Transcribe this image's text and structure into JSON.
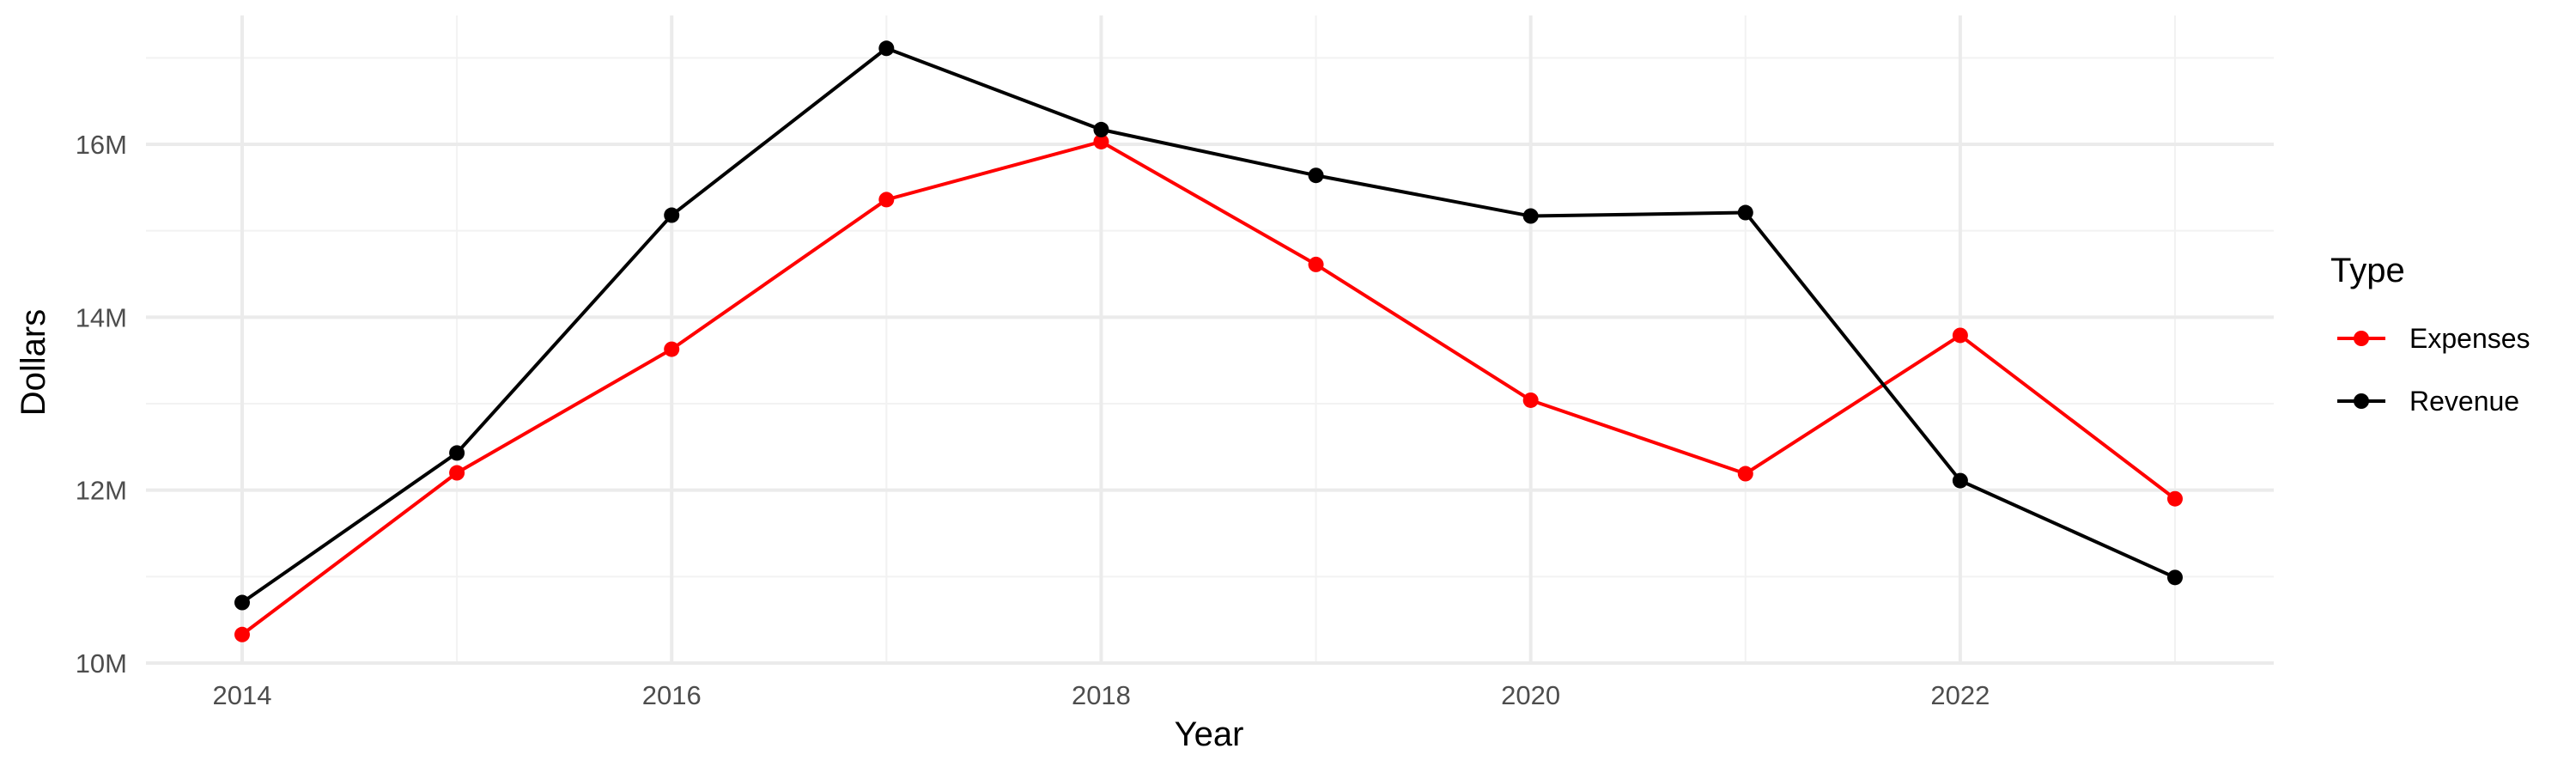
{
  "chart_data": {
    "type": "line",
    "title": "",
    "xlabel": "Year",
    "ylabel": "Dollars",
    "x": [
      2014,
      2015,
      2016,
      2017,
      2018,
      2019,
      2020,
      2021,
      2022,
      2023
    ],
    "x_ticks": [
      2014,
      2016,
      2018,
      2020,
      2022
    ],
    "y_ticks": [
      10000000,
      12000000,
      14000000,
      16000000
    ],
    "y_tick_labels": [
      "10M",
      "12M",
      "14M",
      "16M"
    ],
    "xlim": [
      2013.55,
      2023.45
    ],
    "ylim": [
      10000000,
      17400000
    ],
    "grid": true,
    "legend": {
      "title": "Type",
      "position": "right"
    },
    "series": [
      {
        "name": "Expenses",
        "color": "#ff0000",
        "values": [
          10330000,
          12200000,
          13630000,
          15360000,
          16030000,
          14610000,
          13040000,
          12190000,
          13790000,
          11900000
        ]
      },
      {
        "name": "Revenue",
        "color": "#000000",
        "values": [
          10700000,
          12430000,
          15180000,
          17110000,
          16170000,
          15640000,
          15170000,
          15210000,
          12110000,
          10990000
        ]
      }
    ]
  }
}
